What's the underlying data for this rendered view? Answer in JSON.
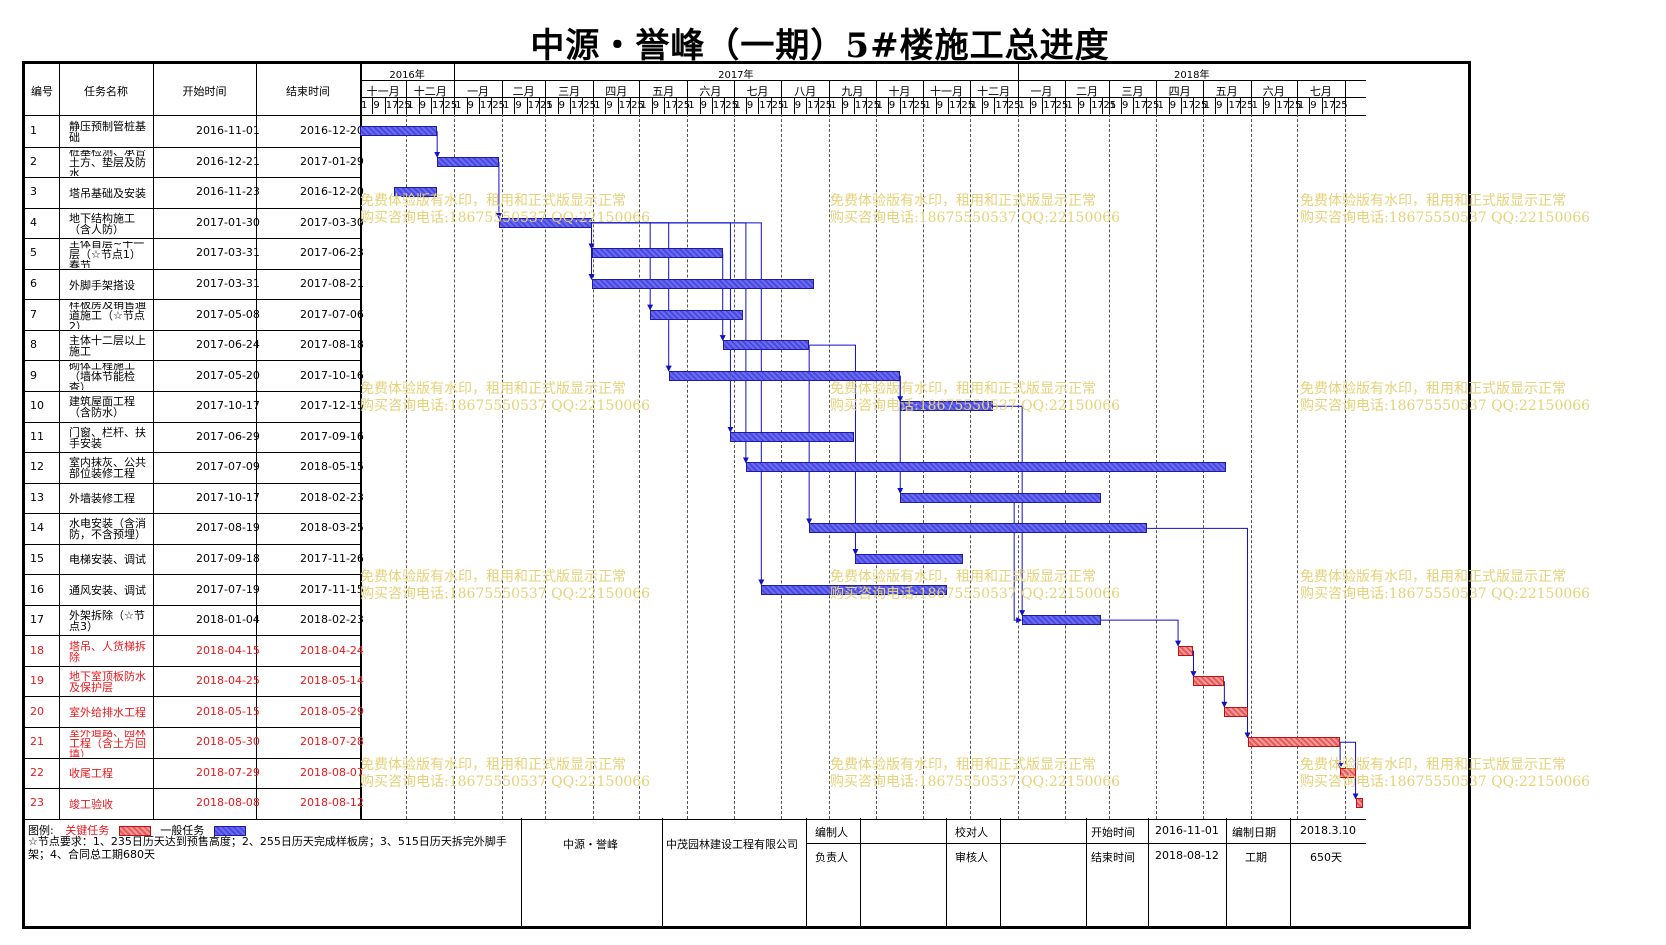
{
  "title": "中源・誉峰（一期）5#楼施工总进度",
  "columns": {
    "id": "编号",
    "name": "任务名称",
    "start": "开始时间",
    "end": "结束时间"
  },
  "timeline": {
    "years": [
      "2016年",
      "2017年",
      "2018年"
    ],
    "months": [
      "十一月",
      "十二月",
      "一月",
      "二月",
      "三月",
      "四月",
      "五月",
      "六月",
      "七月",
      "八月",
      "九月",
      "十月",
      "十一月",
      "十二月",
      "一月",
      "二月",
      "三月",
      "四月",
      "五月",
      "六月",
      "七月"
    ],
    "ticks": [
      "1",
      "9",
      "17",
      "25"
    ]
  },
  "tasks": [
    {
      "id": "1",
      "name": "静压预制管桩基础",
      "start": "2016-11-01",
      "end": "2016-12-20",
      "critical": false
    },
    {
      "id": "2",
      "name": "桩基检测、承台土方、垫层及防水",
      "start": "2016-12-21",
      "end": "2017-01-29",
      "critical": false
    },
    {
      "id": "3",
      "name": "塔吊基础及安装",
      "start": "2016-11-23",
      "end": "2016-12-20",
      "critical": false
    },
    {
      "id": "4",
      "name": "地下结构施工（含人防）",
      "start": "2017-01-30",
      "end": "2017-03-30",
      "critical": false
    },
    {
      "id": "5",
      "name": "主体首层~十一层（☆节点1）春节",
      "start": "2017-03-31",
      "end": "2017-06-23",
      "critical": false
    },
    {
      "id": "6",
      "name": "外脚手架搭设",
      "start": "2017-03-31",
      "end": "2017-08-21",
      "critical": false
    },
    {
      "id": "7",
      "name": "样板房及销售通道施工（☆节点2）",
      "start": "2017-05-08",
      "end": "2017-07-06",
      "critical": false
    },
    {
      "id": "8",
      "name": "主体十二层以上施工",
      "start": "2017-06-24",
      "end": "2017-08-18",
      "critical": false
    },
    {
      "id": "9",
      "name": "砌体工程施工（墙体节能检查）",
      "start": "2017-05-20",
      "end": "2017-10-16",
      "critical": false
    },
    {
      "id": "10",
      "name": "建筑屋面工程（含防水）",
      "start": "2017-10-17",
      "end": "2017-12-15",
      "critical": false
    },
    {
      "id": "11",
      "name": "门窗、栏杆、扶手安装",
      "start": "2017-06-29",
      "end": "2017-09-16",
      "critical": false
    },
    {
      "id": "12",
      "name": "室内抹灰、公共部位装修工程",
      "start": "2017-07-09",
      "end": "2018-05-15",
      "critical": false
    },
    {
      "id": "13",
      "name": "外墙装修工程",
      "start": "2017-10-17",
      "end": "2018-02-23",
      "critical": false
    },
    {
      "id": "14",
      "name": "水电安装（含消防，不含预埋）",
      "start": "2017-08-19",
      "end": "2018-03-25",
      "critical": false
    },
    {
      "id": "15",
      "name": "电梯安装、调试",
      "start": "2017-09-18",
      "end": "2017-11-26",
      "critical": false
    },
    {
      "id": "16",
      "name": "通风安装、调试",
      "start": "2017-07-19",
      "end": "2017-11-15",
      "critical": false
    },
    {
      "id": "17",
      "name": "外架拆除（☆节点3）",
      "start": "2018-01-04",
      "end": "2018-02-23",
      "critical": false
    },
    {
      "id": "18",
      "name": "塔吊、人货梯拆除",
      "start": "2018-04-15",
      "end": "2018-04-24",
      "critical": true
    },
    {
      "id": "19",
      "name": "地下室顶板防水及保护层",
      "start": "2018-04-25",
      "end": "2018-05-14",
      "critical": true
    },
    {
      "id": "20",
      "name": "室外给排水工程",
      "start": "2018-05-15",
      "end": "2018-05-29",
      "critical": true
    },
    {
      "id": "21",
      "name": "室外道路、园林工程（含土方回填）",
      "start": "2018-05-30",
      "end": "2018-07-28",
      "critical": true
    },
    {
      "id": "22",
      "name": "收尾工程",
      "start": "2018-07-29",
      "end": "2018-08-07",
      "critical": true
    },
    {
      "id": "23",
      "name": "竣工验收",
      "start": "2018-08-08",
      "end": "2018-08-12",
      "critical": true
    }
  ],
  "links": [
    [
      1,
      2
    ],
    [
      2,
      4
    ],
    [
      4,
      5
    ],
    [
      4,
      6
    ],
    [
      4,
      7
    ],
    [
      5,
      8
    ],
    [
      4,
      9
    ],
    [
      9,
      10
    ],
    [
      4,
      11
    ],
    [
      4,
      12
    ],
    [
      8,
      14
    ],
    [
      9,
      13
    ],
    [
      4,
      16
    ],
    [
      8,
      15
    ],
    [
      10,
      17
    ],
    [
      13,
      17
    ],
    [
      17,
      18
    ],
    [
      18,
      19
    ],
    [
      14,
      21
    ],
    [
      19,
      20
    ],
    [
      20,
      21
    ],
    [
      21,
      22
    ],
    [
      21,
      23
    ]
  ],
  "watermark": {
    "line1": "免费体验版有水印，租用和正式版显示正常",
    "line2": "购买咨询电话:18675550537 QQ:22150066"
  },
  "footer": {
    "legend_label": "图例:",
    "legend_critical": "关键任务",
    "legend_normal": "一般任务",
    "requirements": "☆节点要求：1、235日历天达到预售高度；2、255日历天完成样板房；3、515日历天拆完外脚手架；4、合同总工期680天",
    "project": "中源・誉峰",
    "company": "中茂园林建设工程有限公司",
    "compiler_label": "编制人",
    "checker_label": "校对人",
    "responsible_label": "负责人",
    "reviewer_label": "审核人",
    "start_label": "开始时间",
    "start_value": "2016-11-01",
    "end_label": "结束时间",
    "end_value": "2018-08-12",
    "date_label": "编制日期",
    "date_value": "2018.3.10",
    "duration_label": "工期",
    "duration_value": "650天"
  },
  "colors": {
    "critical_text": "#e8191d",
    "normal_bar": "#4a4ae0",
    "critical_bar": "#ea5a5a",
    "link": "#1010c8",
    "watermark": "#e6d278"
  }
}
